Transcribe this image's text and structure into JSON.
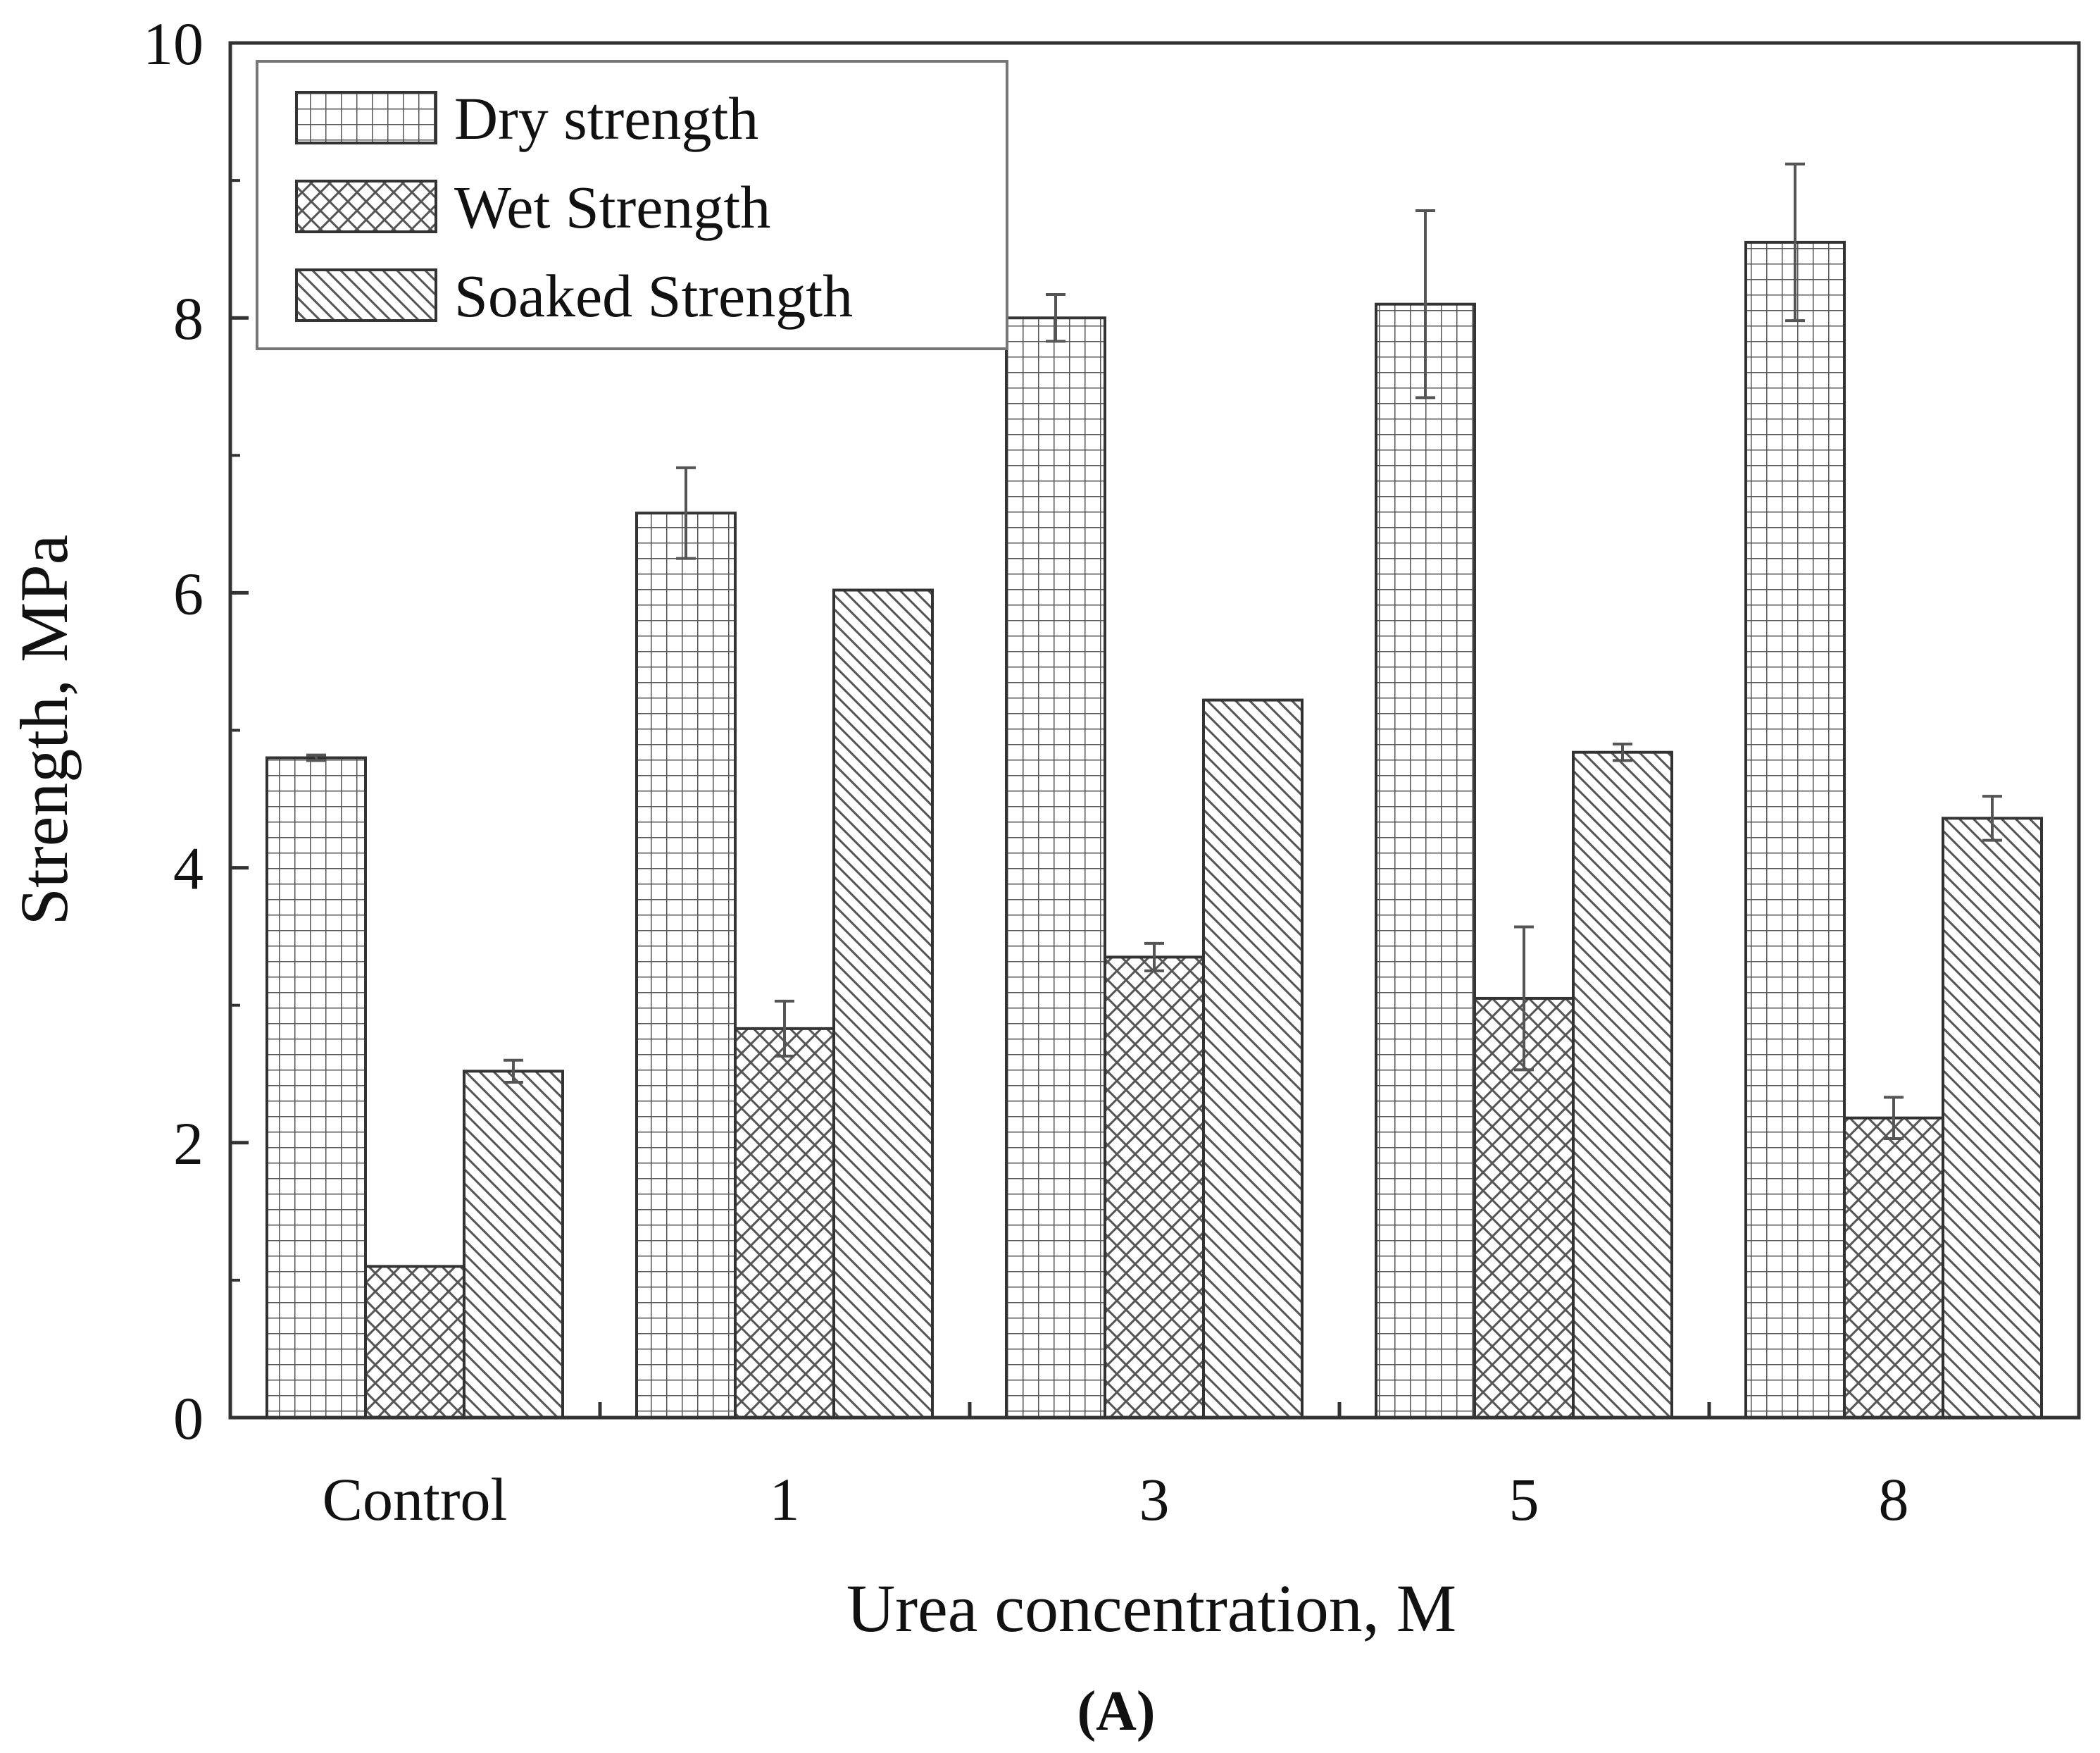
{
  "chart_data": {
    "type": "bar",
    "title": "",
    "panel_label": "(A)",
    "xlabel": "Urea concentration, M",
    "ylabel": "Strength, MPa",
    "ylim": [
      0,
      10
    ],
    "yticks": [
      0,
      2,
      4,
      6,
      8,
      10
    ],
    "grid": false,
    "legend_position": "top-left",
    "categories": [
      "Control",
      "1",
      "3",
      "5",
      "8"
    ],
    "series": [
      {
        "name": "Dry strength",
        "pattern": "grid",
        "values": [
          4.8,
          6.58,
          8.0,
          8.1,
          8.55
        ],
        "errors": [
          0.02,
          0.33,
          0.17,
          0.68,
          0.57
        ]
      },
      {
        "name": "Wet Strength",
        "pattern": "crosshatch",
        "values": [
          1.1,
          2.83,
          3.35,
          3.05,
          2.18
        ],
        "errors": [
          0.0,
          0.2,
          0.1,
          0.52,
          0.15
        ]
      },
      {
        "name": "Soaked Strength",
        "pattern": "diagonal",
        "values": [
          2.52,
          6.02,
          5.22,
          4.84,
          4.36
        ],
        "errors": [
          0.08,
          0.0,
          0.0,
          0.06,
          0.16
        ]
      }
    ],
    "colors": {
      "stroke": "#333333",
      "fill": "#ffffff",
      "error": "#555555"
    }
  }
}
